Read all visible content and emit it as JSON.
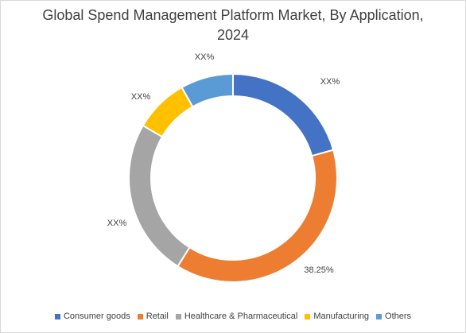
{
  "chart_data": {
    "type": "pie",
    "title_line1": "Global Spend Management Platform Market, By Application,",
    "title_line2": "2024",
    "donut": true,
    "legend_position": "bottom",
    "slices": [
      {
        "name": "Consumer goods",
        "value": 0.2065,
        "label": "XX%",
        "color": "#4472C4"
      },
      {
        "name": "Retail",
        "value": 0.3825,
        "label": "38.25%",
        "color": "#ED7D31"
      },
      {
        "name": "Healthcare & Pharmaceutical",
        "value": 0.245,
        "label": "XX%",
        "color": "#A5A5A5"
      },
      {
        "name": "Manufacturing",
        "value": 0.0842,
        "label": "XX%",
        "color": "#FFC000"
      },
      {
        "name": "Others",
        "value": 0.0818,
        "label": "XX%",
        "color": "#5B9BD5"
      }
    ]
  }
}
